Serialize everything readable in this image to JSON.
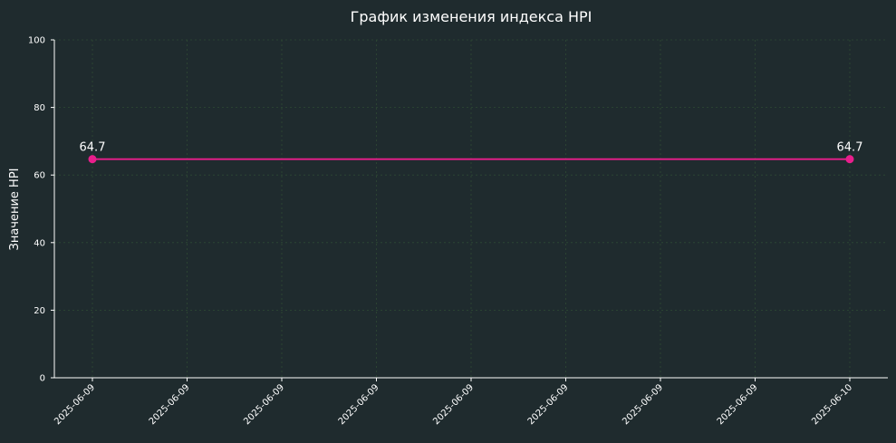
{
  "chart_data": {
    "type": "line",
    "title": "График изменения индекса HPI",
    "xlabel": "",
    "ylabel": "Значение HPI",
    "ylim": [
      0,
      100
    ],
    "yticks": [
      0,
      20,
      40,
      60,
      80,
      100
    ],
    "xticks": [
      "2025-06-09",
      "2025-06-09",
      "2025-06-09",
      "2025-06-09",
      "2025-06-09",
      "2025-06-09",
      "2025-06-09",
      "2025-06-09",
      "2025-06-10"
    ],
    "grid": true,
    "x": [
      "2025-06-09",
      "2025-06-10"
    ],
    "series": [
      {
        "values": [
          64.7,
          64.7
        ],
        "labels": [
          "64.7",
          "64.7"
        ],
        "color": "#e91e8c"
      }
    ]
  },
  "colors": {
    "background": "#1f2b2e",
    "grid": "#2f4a34",
    "axis": "#ffffff",
    "line": "#e91e8c"
  }
}
